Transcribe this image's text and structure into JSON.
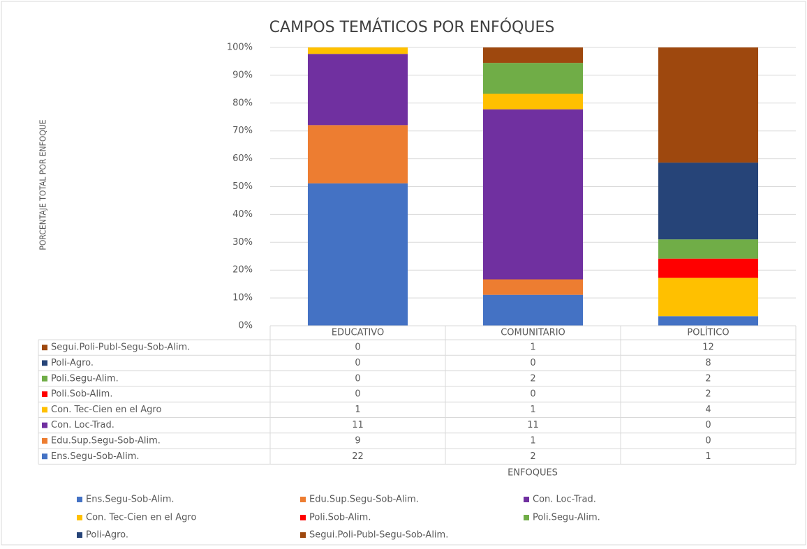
{
  "chart_data": {
    "type": "bar",
    "stacking": "percent",
    "title": "CAMPOS TEMÁTICOS POR ENFÓQUES",
    "x_label": "ENFOQUES",
    "y_label": "PORCENTAJE TOTAL POR ENFOQUE",
    "categories": [
      "EDUCATIVO",
      "COMUNITARIO",
      "POLÍTICO"
    ],
    "series": [
      {
        "name": "Ens.Segu-Sob-Alim.",
        "color": "#4472c4",
        "values": [
          22,
          2,
          1
        ]
      },
      {
        "name": "Edu.Sup.Segu-Sob-Alim.",
        "color": "#ed7d31",
        "values": [
          9,
          1,
          0
        ]
      },
      {
        "name": "Con. Loc-Trad.",
        "color": "#7030a0",
        "values": [
          11,
          11,
          0
        ]
      },
      {
        "name": "Con. Tec-Cien en el Agro",
        "color": "#ffc000",
        "values": [
          1,
          1,
          4
        ]
      },
      {
        "name": "Poli.Sob-Alim.",
        "color": "#ff0000",
        "values": [
          0,
          0,
          2
        ]
      },
      {
        "name": "Poli.Segu-Alim.",
        "color": "#70ad47",
        "values": [
          0,
          2,
          2
        ]
      },
      {
        "name": "Poli-Agro.",
        "color": "#264478",
        "values": [
          0,
          0,
          8
        ]
      },
      {
        "name": "Segui.Poli-Publ-Segu-Sob-Alim.",
        "color": "#9e480e",
        "values": [
          0,
          1,
          12
        ]
      }
    ],
    "ylim": [
      0,
      100
    ],
    "yticks": [
      {
        "value": 0,
        "label": "0%"
      },
      {
        "value": 10,
        "label": "10%"
      },
      {
        "value": 20,
        "label": "20%"
      },
      {
        "value": 30,
        "label": "30%"
      },
      {
        "value": 40,
        "label": "40%"
      },
      {
        "value": 50,
        "label": "50%"
      },
      {
        "value": 60,
        "label": "60%"
      },
      {
        "value": 70,
        "label": "70%"
      },
      {
        "value": 80,
        "label": "80%"
      },
      {
        "value": 90,
        "label": "90%"
      },
      {
        "value": 100,
        "label": "100%"
      }
    ],
    "grid": true,
    "data_table": true,
    "legend": "bottom"
  }
}
